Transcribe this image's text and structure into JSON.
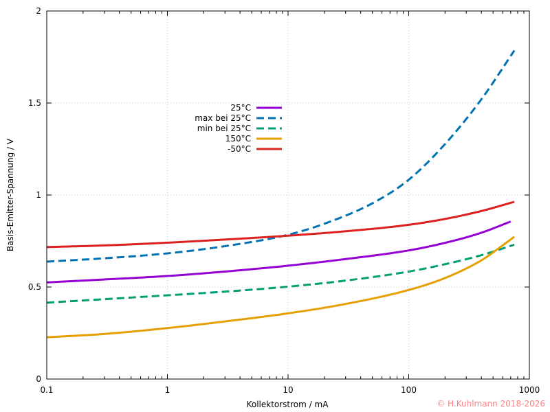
{
  "chart_data": {
    "type": "line",
    "title": "",
    "xlabel": "Kollektorstrom / mA",
    "ylabel": "Basis-Emitter-Spannung / V",
    "x_scale": "log",
    "xlim": [
      0.1,
      1000
    ],
    "ylim": [
      0,
      2
    ],
    "x_ticks": [
      0.1,
      1,
      10,
      100,
      1000
    ],
    "x_tick_labels": [
      "0.1",
      "1",
      "10",
      "100",
      "1000"
    ],
    "y_ticks": [
      0,
      0.5,
      1,
      1.5,
      2
    ],
    "y_tick_labels": [
      "0",
      "0.5",
      "1",
      "1.5",
      "2"
    ],
    "grid": true,
    "legend_position": "center-left",
    "copyright": "© H.Kuhlmann 2018-2026",
    "copyright_color": "#ff8080",
    "series": [
      {
        "name": "25°C",
        "color": "#9400d3",
        "dash": "solid",
        "x": [
          0.1,
          0.3,
          1,
          3,
          10,
          30,
          100,
          200,
          400,
          700
        ],
        "y": [
          0.525,
          0.541,
          0.56,
          0.584,
          0.616,
          0.652,
          0.699,
          0.74,
          0.795,
          0.856
        ]
      },
      {
        "name": "max bei 25°C",
        "color": "#0072b2",
        "dash": "dashed",
        "x": [
          0.1,
          0.3,
          1,
          3,
          10,
          20,
          50,
          100,
          200,
          400,
          750
        ],
        "y": [
          0.638,
          0.656,
          0.683,
          0.722,
          0.784,
          0.844,
          0.955,
          1.083,
          1.277,
          1.52,
          1.785
        ]
      },
      {
        "name": "min bei 25°C",
        "color": "#009e73",
        "dash": "dashed",
        "x": [
          0.1,
          0.3,
          1,
          3,
          10,
          30,
          100,
          200,
          400,
          750
        ],
        "y": [
          0.415,
          0.434,
          0.455,
          0.475,
          0.502,
          0.535,
          0.584,
          0.624,
          0.673,
          0.73
        ]
      },
      {
        "name": "150°C",
        "color": "#e69f00",
        "dash": "solid",
        "x": [
          0.1,
          0.3,
          1,
          3,
          10,
          30,
          100,
          200,
          400,
          600,
          750
        ],
        "y": [
          0.227,
          0.245,
          0.277,
          0.313,
          0.357,
          0.408,
          0.484,
          0.549,
          0.645,
          0.726,
          0.773
        ]
      },
      {
        "name": "-50°C",
        "color": "#dd1f1f",
        "dash": "solid",
        "x": [
          0.1,
          0.3,
          1,
          3,
          10,
          30,
          100,
          200,
          400,
          750
        ],
        "y": [
          0.717,
          0.726,
          0.741,
          0.758,
          0.779,
          0.803,
          0.838,
          0.87,
          0.913,
          0.963
        ]
      }
    ]
  }
}
